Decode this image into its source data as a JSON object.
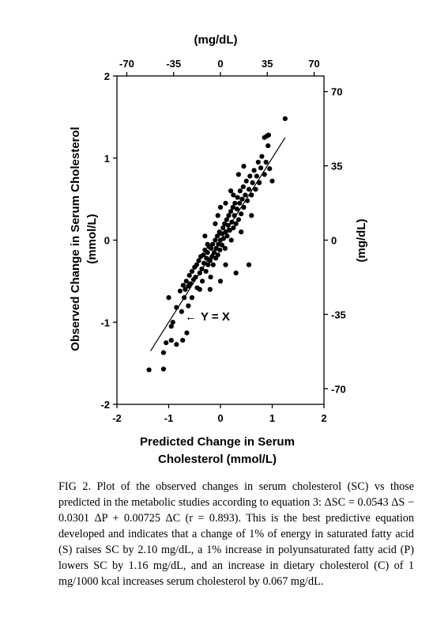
{
  "chart_data": {
    "type": "scatter",
    "xlabel_line1": "Predicted Change in Serum",
    "xlabel_line2": "Cholesterol (mmol/L)",
    "ylabel_line1": "Observed Change in Serum Cholesterol",
    "ylabel_line2": "(mmol/L)",
    "top_axis_label": "(mg/dL)",
    "right_axis_label": "(mg/dL)",
    "xlim": [
      -2,
      2
    ],
    "ylim": [
      -2,
      2
    ],
    "x_ticks": [
      -2,
      -1,
      0,
      1,
      2
    ],
    "y_ticks": [
      -2,
      -1,
      0,
      1,
      2
    ],
    "top_ticks": [
      -70,
      -35,
      0,
      35,
      70
    ],
    "right_ticks": [
      -70,
      -35,
      0,
      35,
      70
    ],
    "mg_per_mmol": 38.67,
    "line_annotation": "Y = X",
    "line_annotation_arrow": "←",
    "identity_line": {
      "x": [
        -1.35,
        1.25
      ],
      "y": [
        -1.35,
        1.25
      ]
    },
    "points": [
      [
        -1.38,
        -1.58
      ],
      [
        -1.1,
        -1.57
      ],
      [
        -1.1,
        -1.37
      ],
      [
        -1.05,
        -1.25
      ],
      [
        -0.95,
        -1.22
      ],
      [
        -0.85,
        -1.27
      ],
      [
        -0.73,
        -1.22
      ],
      [
        -0.65,
        -1.13
      ],
      [
        -1.0,
        -0.7
      ],
      [
        -0.95,
        -1.05
      ],
      [
        -0.92,
        -1.0
      ],
      [
        -0.85,
        -0.82
      ],
      [
        -0.75,
        -0.87
      ],
      [
        -0.78,
        -0.62
      ],
      [
        -0.72,
        -0.55
      ],
      [
        -0.68,
        -0.6
      ],
      [
        -0.66,
        -0.5
      ],
      [
        -0.62,
        -0.56
      ],
      [
        -0.6,
        -0.43
      ],
      [
        -0.58,
        -0.53
      ],
      [
        -0.55,
        -0.38
      ],
      [
        -0.52,
        -0.48
      ],
      [
        -0.5,
        -0.33
      ],
      [
        -0.48,
        -0.45
      ],
      [
        -0.46,
        -0.3
      ],
      [
        -0.45,
        -0.58
      ],
      [
        -0.42,
        -0.25
      ],
      [
        -0.4,
        -0.4
      ],
      [
        -0.38,
        -0.2
      ],
      [
        -0.36,
        -0.35
      ],
      [
        -0.35,
        -0.5
      ],
      [
        -0.33,
        -0.18
      ],
      [
        -0.32,
        -0.28
      ],
      [
        -0.3,
        -0.12
      ],
      [
        -0.28,
        -0.38
      ],
      [
        -0.27,
        -0.22
      ],
      [
        -0.25,
        -0.15
      ],
      [
        -0.24,
        -0.3
      ],
      [
        -0.22,
        -0.08
      ],
      [
        -0.2,
        -0.25
      ],
      [
        -0.19,
        -0.45
      ],
      [
        -0.18,
        -0.1
      ],
      [
        -0.16,
        -0.2
      ],
      [
        -0.15,
        -0.05
      ],
      [
        -0.14,
        -0.3
      ],
      [
        -0.12,
        -0.15
      ],
      [
        -0.1,
        0.0
      ],
      [
        -0.09,
        -0.22
      ],
      [
        -0.08,
        -0.1
      ],
      [
        -0.06,
        0.05
      ],
      [
        -0.05,
        -0.18
      ],
      [
        -0.04,
        -0.05
      ],
      [
        -0.02,
        0.1
      ],
      [
        -0.01,
        -0.12
      ],
      [
        0.0,
        0.0
      ],
      [
        0.02,
        0.08
      ],
      [
        0.03,
        -0.06
      ],
      [
        0.05,
        0.15
      ],
      [
        0.06,
        0.02
      ],
      [
        0.08,
        0.2
      ],
      [
        0.09,
        -0.1
      ],
      [
        0.1,
        0.1
      ],
      [
        0.12,
        0.25
      ],
      [
        0.13,
        0.05
      ],
      [
        0.15,
        0.18
      ],
      [
        0.16,
        0.3
      ],
      [
        0.18,
        0.12
      ],
      [
        0.2,
        0.35
      ],
      [
        0.21,
        0.0
      ],
      [
        0.22,
        0.22
      ],
      [
        0.24,
        0.4
      ],
      [
        0.25,
        0.15
      ],
      [
        0.27,
        0.3
      ],
      [
        0.28,
        0.45
      ],
      [
        0.3,
        0.2
      ],
      [
        0.32,
        0.38
      ],
      [
        0.33,
        0.52
      ],
      [
        0.35,
        0.25
      ],
      [
        0.37,
        0.45
      ],
      [
        0.38,
        0.6
      ],
      [
        0.4,
        0.32
      ],
      [
        0.42,
        0.5
      ],
      [
        0.44,
        0.65
      ],
      [
        0.45,
        0.4
      ],
      [
        0.48,
        0.55
      ],
      [
        0.5,
        0.72
      ],
      [
        0.52,
        0.48
      ],
      [
        0.55,
        0.62
      ],
      [
        0.57,
        0.78
      ],
      [
        0.6,
        0.55
      ],
      [
        0.62,
        0.7
      ],
      [
        0.65,
        0.85
      ],
      [
        0.68,
        0.62
      ],
      [
        0.7,
        0.78
      ],
      [
        0.73,
        0.95
      ],
      [
        0.75,
        0.7
      ],
      [
        0.78,
        0.88
      ],
      [
        0.8,
        1.02
      ],
      [
        0.85,
        0.8
      ],
      [
        0.88,
        0.95
      ],
      [
        0.95,
        0.87
      ],
      [
        1.0,
        0.72
      ],
      [
        0.92,
        1.15
      ],
      [
        0.9,
        1.27
      ],
      [
        0.93,
        1.28
      ],
      [
        0.85,
        1.25
      ],
      [
        1.25,
        1.48
      ],
      [
        0.55,
        -0.3
      ],
      [
        0.3,
        -0.4
      ],
      [
        0.0,
        -0.5
      ],
      [
        -0.2,
        -0.6
      ],
      [
        0.1,
        -0.3
      ],
      [
        -0.4,
        -0.6
      ],
      [
        -0.55,
        -0.7
      ],
      [
        -0.62,
        -0.8
      ],
      [
        -0.7,
        -0.7
      ],
      [
        0.4,
        0.1
      ],
      [
        0.6,
        0.3
      ],
      [
        0.2,
        0.6
      ],
      [
        0.0,
        0.4
      ],
      [
        -0.1,
        0.2
      ],
      [
        -0.3,
        0.05
      ],
      [
        0.1,
        0.45
      ],
      [
        0.45,
        0.9
      ],
      [
        0.35,
        0.8
      ],
      [
        0.25,
        0.55
      ],
      [
        -0.05,
        0.3
      ],
      [
        -0.25,
        -0.05
      ]
    ]
  },
  "caption": "FIG 2. Plot of the observed changes in serum cholesterol (SC) vs those predicted in the metabolic studies according to equation 3: ΔSC = 0.0543 ΔS − 0.0301 ΔP + 0.00725 ΔC (r = 0.893). This is the best predictive equation developed and indicates that a change of 1% of energy in saturated fatty acid (S) raises SC by 2.10 mg/dL, a 1% increase in polyunsaturated fatty acid (P) lowers SC by 1.16 mg/dL, and an increase in dietary cholesterol (C) of 1 mg/1000 kcal increases serum cholesterol by 0.067 mg/dL."
}
